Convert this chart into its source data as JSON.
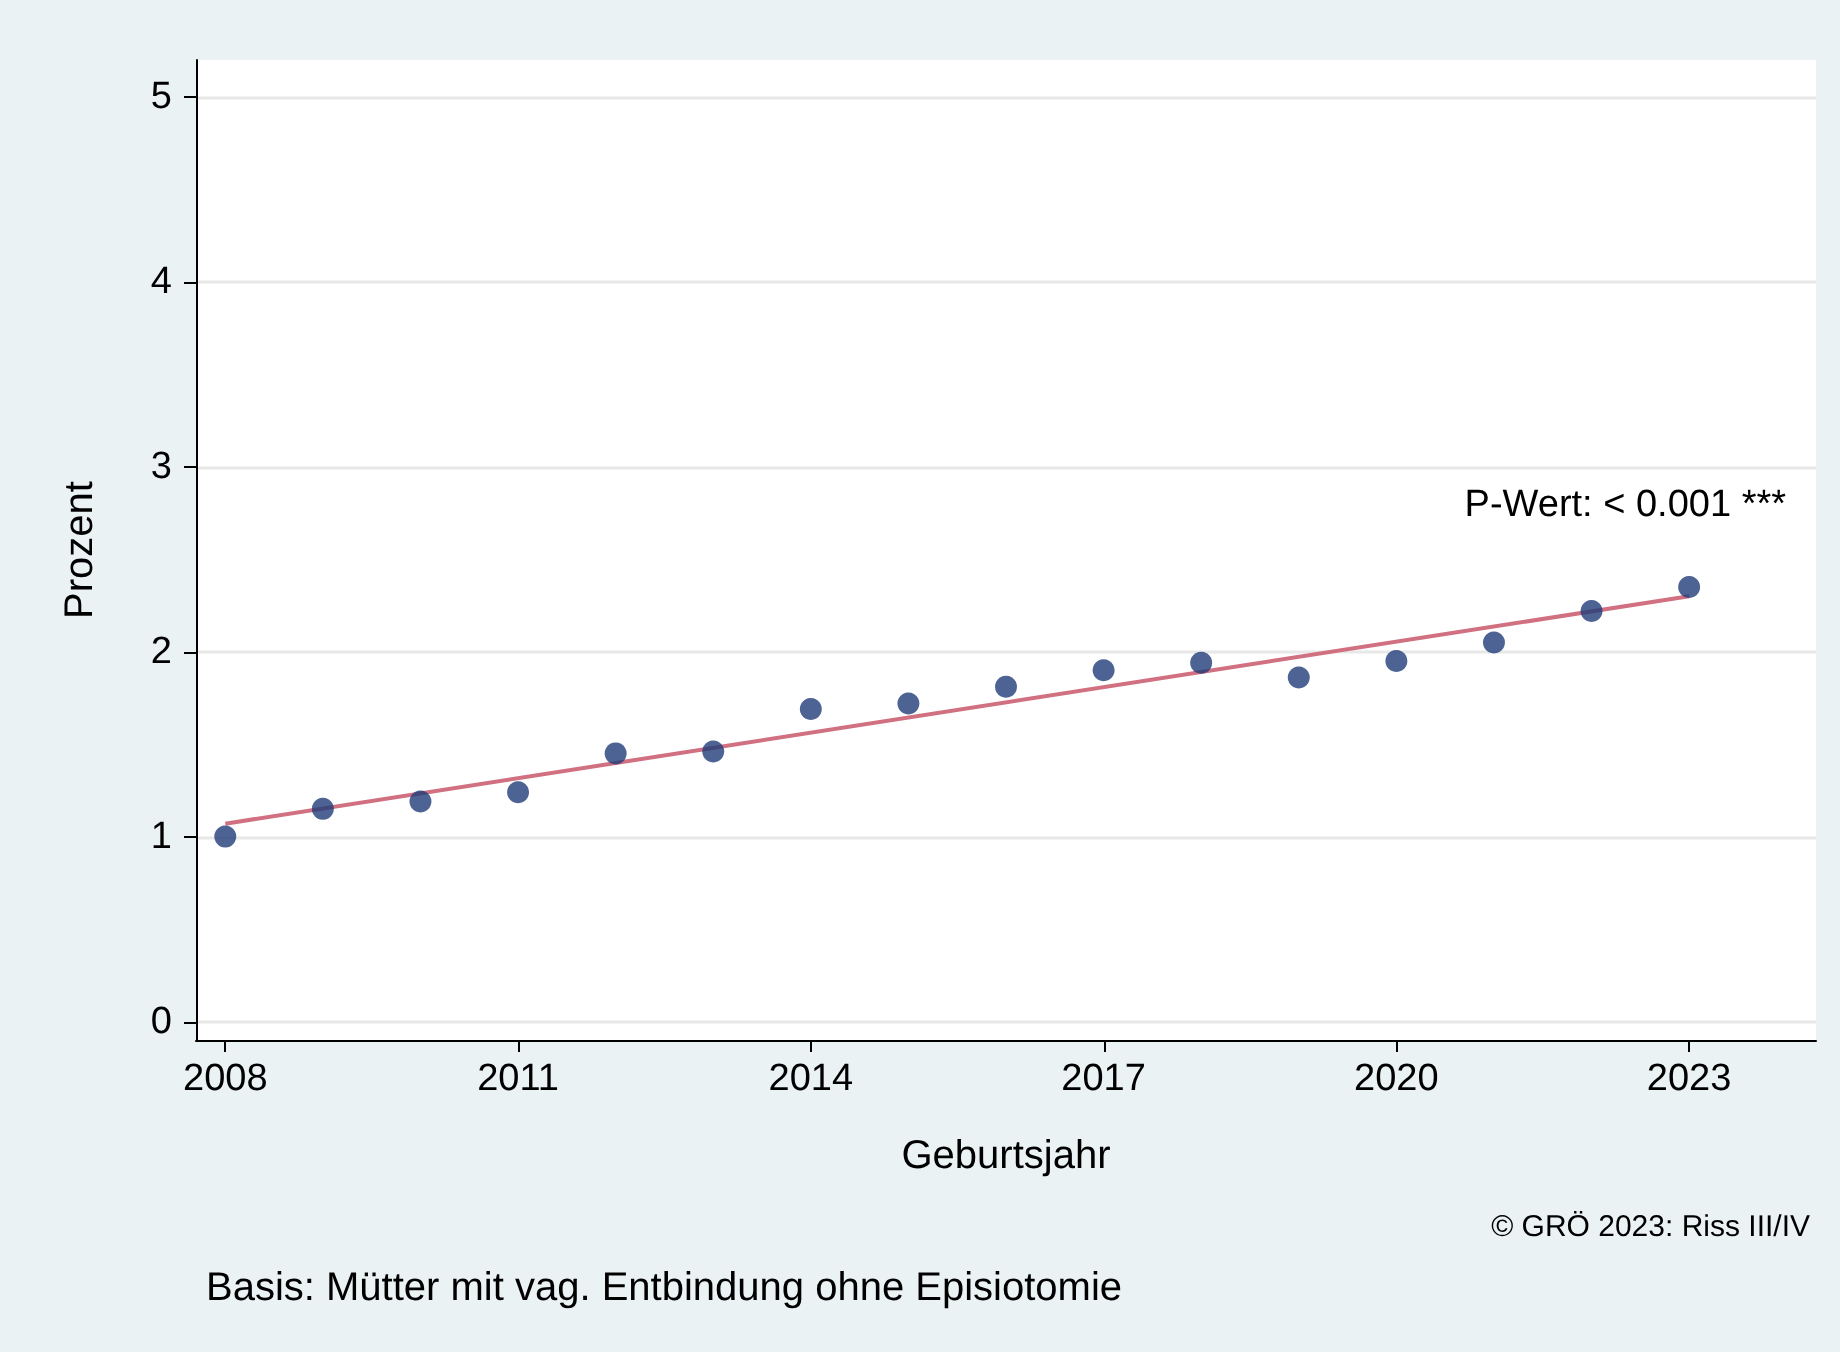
{
  "chart_data": {
    "type": "scatter",
    "xlabel": "Geburtsjahr",
    "ylabel": "Prozent",
    "x": [
      2008,
      2009,
      2010,
      2011,
      2012,
      2013,
      2014,
      2015,
      2016,
      2017,
      2018,
      2019,
      2020,
      2021,
      2022,
      2023
    ],
    "series": [
      {
        "color": "#1f3c78",
        "values": [
          1.0,
          1.15,
          1.19,
          1.24,
          1.45,
          1.46,
          1.69,
          1.72,
          1.81,
          1.9,
          1.94,
          1.86,
          1.95,
          2.05,
          2.22,
          2.35
        ]
      },
      {
        "type": "line",
        "marker": "none",
        "color": "#d07080",
        "x": [
          2008,
          2023
        ],
        "values": [
          1.07,
          2.3
        ]
      }
    ],
    "xlim": [
      2007.7,
      2024.3
    ],
    "ylim": [
      -0.1,
      5.2
    ],
    "xticks": [
      2008,
      2011,
      2014,
      2017,
      2020,
      2023
    ],
    "yticks": [
      0,
      1,
      2,
      3,
      4,
      5
    ],
    "grid": "y",
    "marker": "circle",
    "line_style": "solid",
    "annotations": [
      "P-Wert: < 0.001 ***",
      "© GRÖ 2023: Riss III/IV",
      "Basis: Mütter mit vag. Entbindung ohne Episiotomie"
    ]
  }
}
